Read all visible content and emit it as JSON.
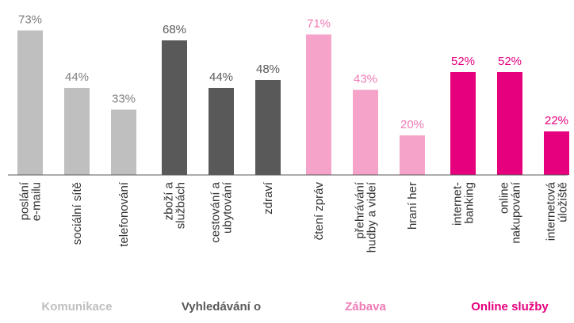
{
  "chart_data": {
    "type": "bar",
    "ylim": [
      0,
      80
    ],
    "series": [
      {
        "name": "Komunikace",
        "color": "#bfbfbf",
        "text_color": "#808080",
        "categories": [
          "poslání\ne-mailu",
          "sociální sítě",
          "telefonování"
        ],
        "values": [
          73,
          44,
          33
        ],
        "value_labels": [
          "73%",
          "44%",
          "33%"
        ]
      },
      {
        "name": "Vyhledávání o",
        "color": "#595959",
        "text_color": "#595959",
        "categories": [
          "zboží a\nslužbách",
          "cestování a\nubytování",
          "zdraví"
        ],
        "values": [
          68,
          44,
          48
        ],
        "value_labels": [
          "68%",
          "44%",
          "48%"
        ]
      },
      {
        "name": "Zábava",
        "color": "#f5a3c9",
        "text_color": "#f07ab5",
        "categories": [
          "čtení zpráv",
          "přehrávání\nhudby a videí",
          "hraní her"
        ],
        "values": [
          71,
          43,
          20
        ],
        "value_labels": [
          "71%",
          "43%",
          "20%"
        ]
      },
      {
        "name": "Online služby",
        "color": "#e6007e",
        "text_color": "#e6007e",
        "categories": [
          "internet-\nbanking",
          "online\nnakupování",
          "internetová\núložiště"
        ],
        "values": [
          52,
          52,
          22
        ],
        "value_labels": [
          "52%",
          "52%",
          "22%"
        ]
      }
    ]
  }
}
